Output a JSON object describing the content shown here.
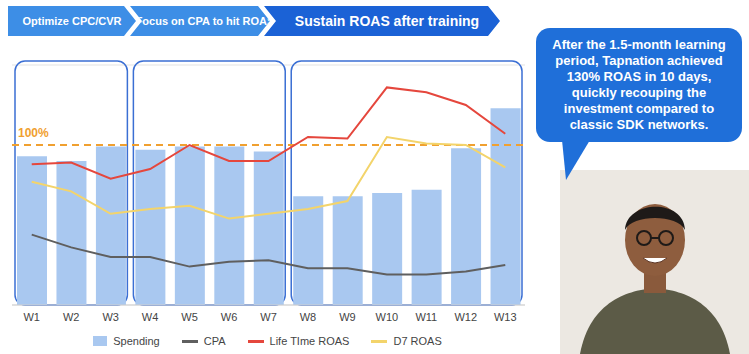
{
  "chart_data": {
    "type": "bar",
    "phases": [
      {
        "label": "Optimize CPC/CVR",
        "range": [
          "W1",
          "W3"
        ]
      },
      {
        "label": "Focus on CPA to hit ROAS",
        "range": [
          "W4",
          "W7"
        ]
      },
      {
        "label": "Sustain ROAS after training",
        "range": [
          "W8",
          "W13"
        ]
      }
    ],
    "annotation": "After the 1.5-month learning period, Tapnation achieved 130% ROAS in 10 days, quickly recouping the investment compared to classic SDK networks.",
    "categories": [
      "W1",
      "W2",
      "W3",
      "W4",
      "W5",
      "W6",
      "W7",
      "W8",
      "W9",
      "W10",
      "W11",
      "W12",
      "W13"
    ],
    "series": [
      {
        "name": "Spending",
        "type": "bar",
        "color": "#a9c8f0",
        "values": [
          93,
          90,
          99,
          97,
          99,
          99,
          96,
          68,
          68,
          70,
          72,
          98,
          123
        ]
      },
      {
        "name": "CPA",
        "type": "line",
        "color": "#5f5f5f",
        "values": [
          44,
          36,
          30,
          30,
          24,
          27,
          28,
          23,
          23,
          19,
          19,
          21,
          25
        ]
      },
      {
        "name": "Life TIme ROAS",
        "type": "line",
        "color": "#e5473d",
        "values": [
          88,
          89,
          79,
          85,
          100,
          90,
          90,
          105,
          104,
          136,
          133,
          125,
          107
        ]
      },
      {
        "name": "D7 ROAS",
        "type": "line",
        "color": "#f3d46b",
        "values": [
          77,
          71,
          57,
          60,
          62,
          54,
          57,
          60,
          65,
          105,
          101,
          100,
          86
        ]
      }
    ],
    "reference_line": {
      "value": 100,
      "label": "100%",
      "color": "#f0a030",
      "line_style": "dashed"
    },
    "ylim": [
      0,
      150
    ],
    "yticks": [
      0,
      25,
      50,
      75,
      100,
      125,
      150
    ],
    "grid": true,
    "tick_labels": "x",
    "legend": "bottom"
  }
}
